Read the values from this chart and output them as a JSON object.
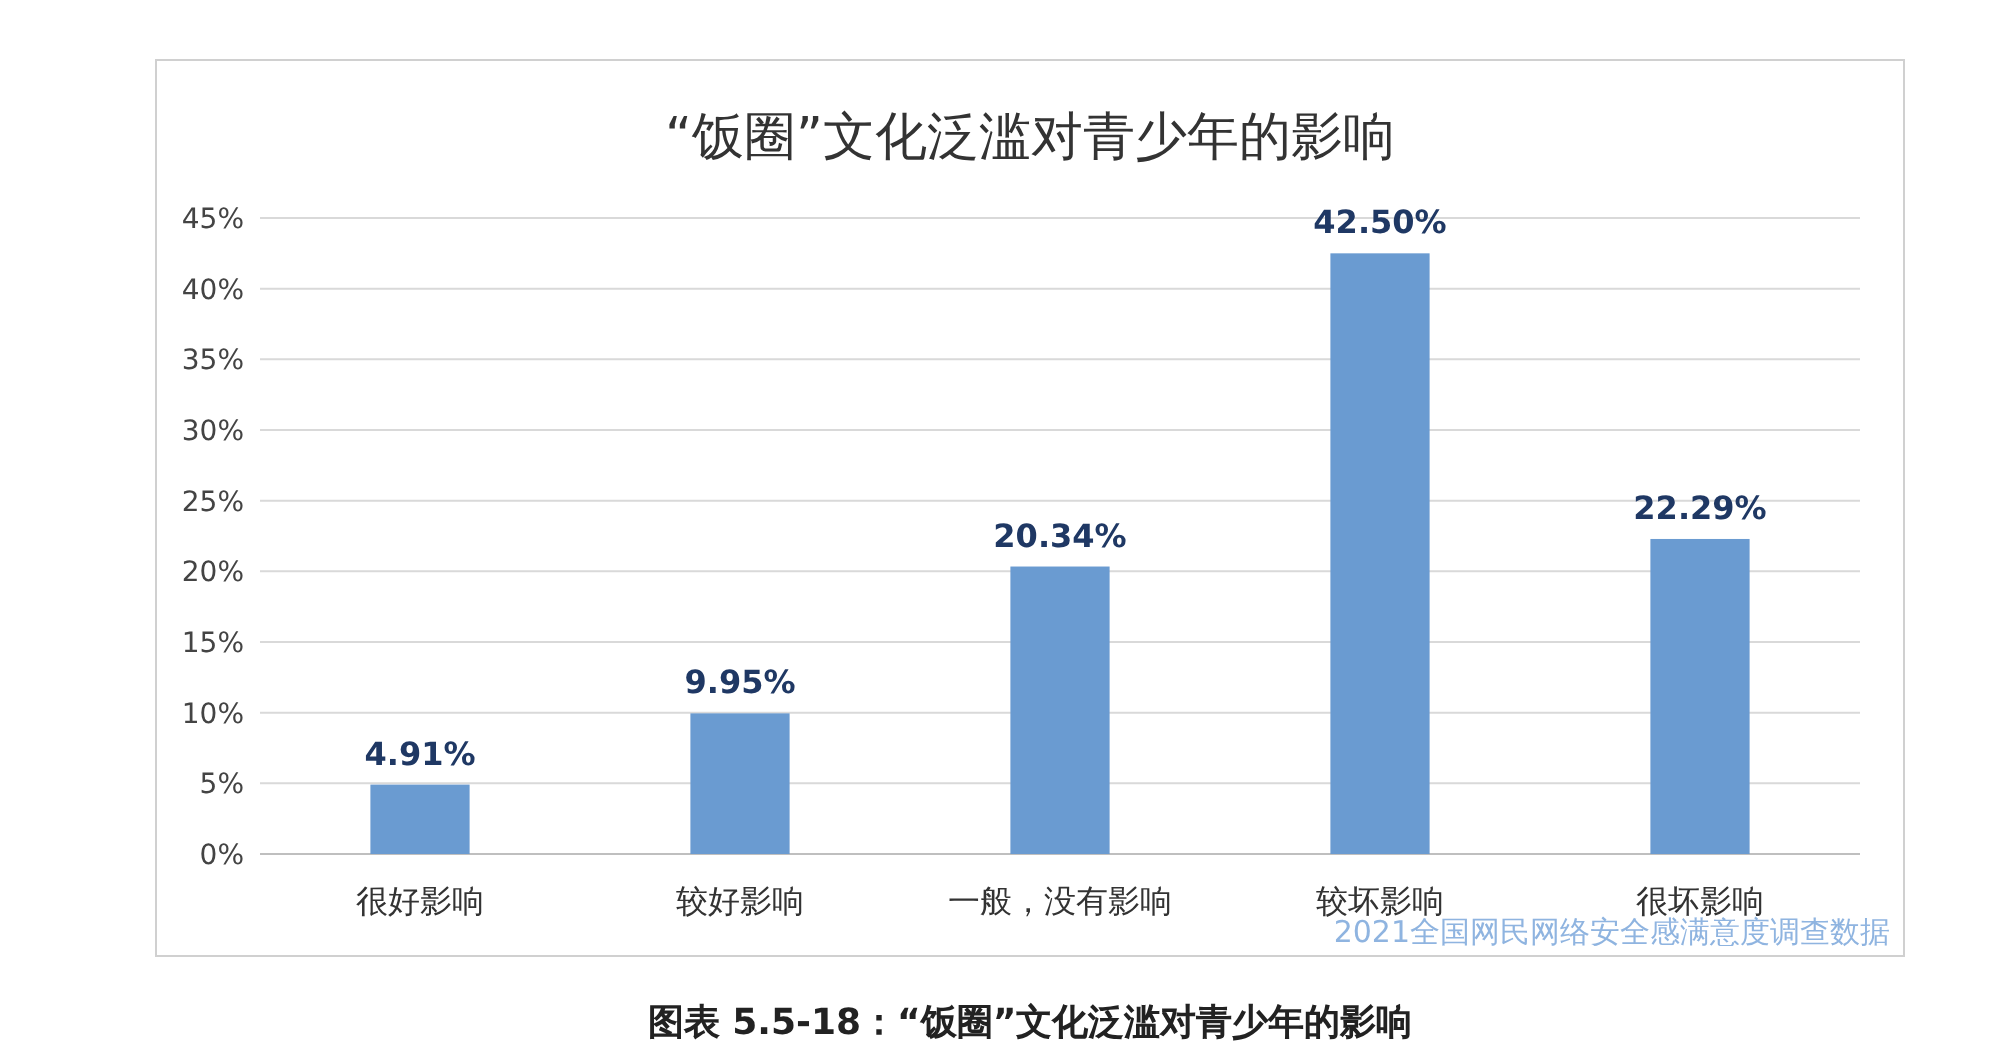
{
  "chart_data": {
    "type": "bar",
    "title": "“饭圈”文化泛滥对青少年的影响",
    "categories": [
      "很好影响",
      "较好影响",
      "一般，没有影响",
      "较坏影响",
      "很坏影响"
    ],
    "values": [
      4.91,
      9.95,
      20.34,
      42.5,
      22.29
    ],
    "value_labels": [
      "4.91%",
      "9.95%",
      "20.34%",
      "42.50%",
      "22.29%"
    ],
    "color": "#6a9bd1",
    "ylim": [
      0,
      45
    ],
    "yticks": [
      {
        "value": 0,
        "label": "0%"
      },
      {
        "value": 5,
        "label": "5%"
      },
      {
        "value": 10,
        "label": "10%"
      },
      {
        "value": 15,
        "label": "15%"
      },
      {
        "value": 20,
        "label": "20%"
      },
      {
        "value": 25,
        "label": "25%"
      },
      {
        "value": 30,
        "label": "30%"
      },
      {
        "value": 35,
        "label": "35%"
      },
      {
        "value": 40,
        "label": "40%"
      },
      {
        "value": 45,
        "label": "45%"
      }
    ],
    "grid": "y",
    "annotations": [
      "2021全国网民网络安全感满意度调查数据",
      "图表 5.5-18：“饭圈”文化泛滥对青少年的影响"
    ]
  }
}
